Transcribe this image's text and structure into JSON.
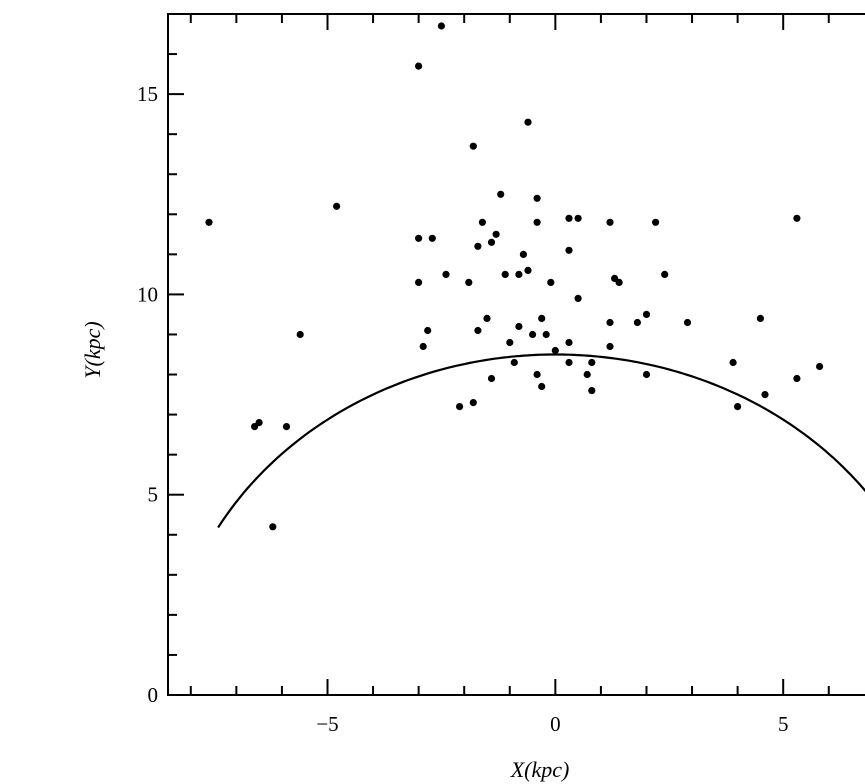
{
  "chart_data": {
    "type": "scatter",
    "xlabel": "X(kpc)",
    "ylabel": "Y(kpc)",
    "xlim": [
      -8.5,
      7.3
    ],
    "ylim": [
      0,
      17
    ],
    "grid": false,
    "x_tick_labels": [
      {
        "value": -5,
        "label": "−5"
      },
      {
        "value": 0,
        "label": "0"
      },
      {
        "value": 5,
        "label": "5"
      }
    ],
    "y_tick_labels": [
      {
        "value": 0,
        "label": "0"
      },
      {
        "value": 5,
        "label": "5"
      },
      {
        "value": 10,
        "label": "10"
      },
      {
        "value": 15,
        "label": "15"
      }
    ],
    "curve": {
      "type": "circle-arc",
      "center": [
        0,
        0
      ],
      "radius": 8.5,
      "x_range": [
        -7.4,
        7.3
      ]
    },
    "points": [
      {
        "x": -7.6,
        "y": 11.8
      },
      {
        "x": -6.2,
        "y": 4.2
      },
      {
        "x": -5.9,
        "y": 6.7
      },
      {
        "x": -5.6,
        "y": 9.0
      },
      {
        "x": -4.8,
        "y": 12.2
      },
      {
        "x": -3.0,
        "y": 15.7
      },
      {
        "x": -2.5,
        "y": 16.7
      },
      {
        "x": -3.0,
        "y": 11.4
      },
      {
        "x": -2.7,
        "y": 11.4
      },
      {
        "x": -3.0,
        "y": 10.3
      },
      {
        "x": -2.9,
        "y": 8.7
      },
      {
        "x": -2.8,
        "y": 9.1
      },
      {
        "x": -2.4,
        "y": 10.5
      },
      {
        "x": -1.9,
        "y": 10.3
      },
      {
        "x": -1.8,
        "y": 13.7
      },
      {
        "x": -1.7,
        "y": 11.2
      },
      {
        "x": -1.6,
        "y": 11.8
      },
      {
        "x": -1.4,
        "y": 11.3
      },
      {
        "x": -1.3,
        "y": 11.5
      },
      {
        "x": -1.2,
        "y": 12.5
      },
      {
        "x": -1.1,
        "y": 10.5
      },
      {
        "x": -1.7,
        "y": 9.1
      },
      {
        "x": -1.5,
        "y": 9.4
      },
      {
        "x": -1.0,
        "y": 8.8
      },
      {
        "x": -0.8,
        "y": 9.2
      },
      {
        "x": -0.8,
        "y": 10.5
      },
      {
        "x": -0.7,
        "y": 11.0
      },
      {
        "x": -0.6,
        "y": 10.6
      },
      {
        "x": -0.6,
        "y": 14.3
      },
      {
        "x": -0.4,
        "y": 12.4
      },
      {
        "x": -0.4,
        "y": 11.8
      },
      {
        "x": -0.5,
        "y": 9.0
      },
      {
        "x": -0.3,
        "y": 9.4
      },
      {
        "x": -0.2,
        "y": 9.0
      },
      {
        "x": -0.1,
        "y": 10.3
      },
      {
        "x": 0.0,
        "y": 8.6
      },
      {
        "x": 0.3,
        "y": 8.8
      },
      {
        "x": 0.3,
        "y": 11.1
      },
      {
        "x": 0.3,
        "y": 11.9
      },
      {
        "x": 0.5,
        "y": 11.9
      },
      {
        "x": 0.5,
        "y": 9.9
      },
      {
        "x": 1.2,
        "y": 11.8
      },
      {
        "x": 1.2,
        "y": 9.3
      },
      {
        "x": 1.3,
        "y": 10.4
      },
      {
        "x": 1.4,
        "y": 10.3
      },
      {
        "x": 1.8,
        "y": 9.3
      },
      {
        "x": 2.0,
        "y": 9.5
      },
      {
        "x": 2.2,
        "y": 11.8
      },
      {
        "x": 2.4,
        "y": 10.5
      },
      {
        "x": 2.9,
        "y": 9.3
      },
      {
        "x": 4.5,
        "y": 9.4
      },
      {
        "x": 5.3,
        "y": 11.9
      },
      {
        "x": -1.4,
        "y": 7.9
      },
      {
        "x": -2.1,
        "y": 7.2
      },
      {
        "x": -1.8,
        "y": 7.3
      },
      {
        "x": -0.9,
        "y": 8.3
      },
      {
        "x": -0.4,
        "y": 8.0
      },
      {
        "x": -0.3,
        "y": 7.7
      },
      {
        "x": 0.3,
        "y": 8.3
      },
      {
        "x": 0.7,
        "y": 8.0
      },
      {
        "x": 0.8,
        "y": 7.6
      },
      {
        "x": 0.8,
        "y": 8.3
      },
      {
        "x": 1.2,
        "y": 8.7
      },
      {
        "x": 2.0,
        "y": 8.0
      },
      {
        "x": 3.9,
        "y": 8.3
      },
      {
        "x": 4.0,
        "y": 7.2
      },
      {
        "x": 4.6,
        "y": 7.5
      },
      {
        "x": 5.3,
        "y": 7.9
      },
      {
        "x": 5.8,
        "y": 8.2
      },
      {
        "x": -6.6,
        "y": 6.7
      },
      {
        "x": -6.5,
        "y": 6.8
      }
    ]
  }
}
